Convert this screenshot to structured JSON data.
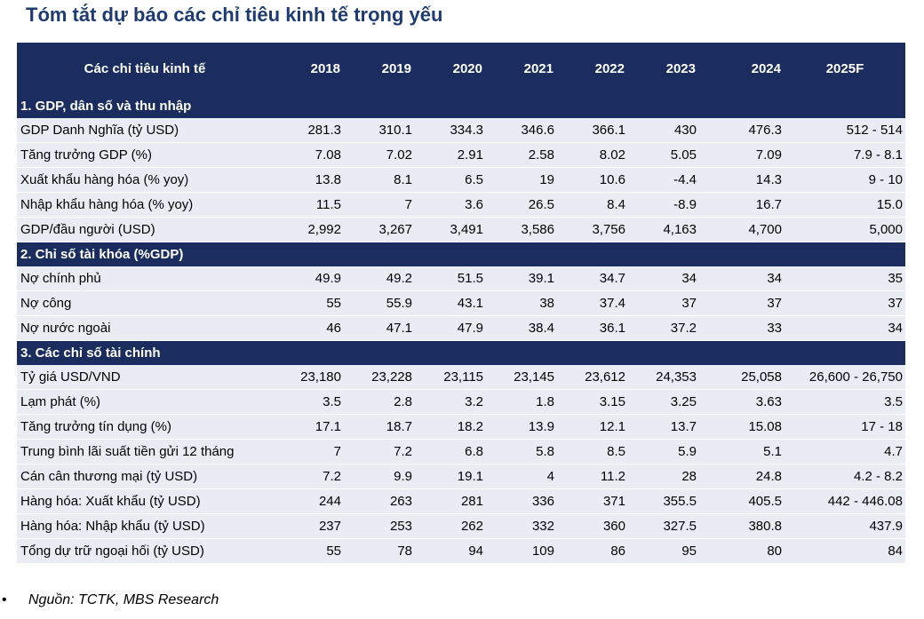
{
  "title": "Tóm tắt dự báo các chỉ tiêu kinh tế trọng yếu",
  "table": {
    "header": [
      "Các chỉ tiêu kinh tế",
      "2018",
      "2019",
      "2020",
      "2021",
      "2022",
      "2023",
      "2024",
      "2025F"
    ],
    "sections": [
      {
        "title": "1. GDP, dân số và thu nhập",
        "rows": [
          [
            "GDP Danh Nghĩa (tỷ USD)",
            "281.3",
            "310.1",
            "334.3",
            "346.6",
            "366.1",
            "430",
            "476.3",
            "512 - 514"
          ],
          [
            "Tăng trưởng GDP (%)",
            "7.08",
            "7.02",
            "2.91",
            "2.58",
            "8.02",
            "5.05",
            "7.09",
            "7.9 - 8.1"
          ],
          [
            "Xuất khẩu hàng hóa (% yoy)",
            "13.8",
            "8.1",
            "6.5",
            "19",
            "10.6",
            "-4.4",
            "14.3",
            "9 - 10"
          ],
          [
            "Nhập khẩu hàng hóa (% yoy)",
            "11.5",
            "7",
            "3.6",
            "26.5",
            "8.4",
            "-8.9",
            "16.7",
            "15.0"
          ],
          [
            "GDP/đầu người (USD)",
            "2,992",
            "3,267",
            "3,491",
            "3,586",
            "3,756",
            "4,163",
            "4,700",
            "5,000"
          ]
        ]
      },
      {
        "title": "2. Chỉ số tài khóa (%GDP)",
        "rows": [
          [
            "Nợ chính phủ",
            "49.9",
            "49.2",
            "51.5",
            "39.1",
            "34.7",
            "34",
            "34",
            "35"
          ],
          [
            "Nợ công",
            "55",
            "55.9",
            "43.1",
            "38",
            "37.4",
            "37",
            "37",
            "37"
          ],
          [
            "Nợ nước ngoài",
            "46",
            "47.1",
            "47.9",
            "38.4",
            "36.1",
            "37.2",
            "33",
            "34"
          ]
        ]
      },
      {
        "title": "3. Các chỉ số tài chính",
        "rows": [
          [
            "Tỷ giá USD/VND",
            "23,180",
            "23,228",
            "23,115",
            "23,145",
            "23,612",
            "24,353",
            "25,058",
            "26,600 - 26,750"
          ],
          [
            "Lạm phát (%)",
            "3.5",
            "2.8",
            "3.2",
            "1.8",
            "3.15",
            "3.25",
            "3.63",
            "3.5"
          ],
          [
            "Tăng trưởng tín dụng (%)",
            "17.1",
            "18.7",
            "18.2",
            "13.9",
            "12.1",
            "13.7",
            "15.08",
            "17 - 18"
          ],
          [
            "Trung bình lãi suất tiền gửi 12 tháng",
            "7",
            "7.2",
            "6.8",
            "5.8",
            "8.5",
            "5.9",
            "5.1",
            "4.7"
          ],
          [
            "Cán cân thương mại (tỷ USD)",
            "7.2",
            "9.9",
            "19.1",
            "4",
            "11.2",
            "28",
            "24.8",
            "4.2 - 8.2"
          ],
          [
            "Hàng hóa: Xuất khẩu (tỷ USD)",
            "244",
            "263",
            "281",
            "336",
            "371",
            "355.5",
            "405.5",
            "442 - 446.08"
          ],
          [
            "Hàng hóa: Nhập khẩu (tỷ USD)",
            "237",
            "253",
            "262",
            "332",
            "360",
            "327.5",
            "380.8",
            "437.9"
          ],
          [
            "Tổng dự trữ ngoại hối (tỷ USD)",
            "55",
            "78",
            "94",
            "109",
            "86",
            "95",
            "80",
            "84"
          ]
        ]
      }
    ]
  },
  "source": {
    "bullet": "•",
    "text": "Nguồn: TCTK, MBS Research"
  }
}
